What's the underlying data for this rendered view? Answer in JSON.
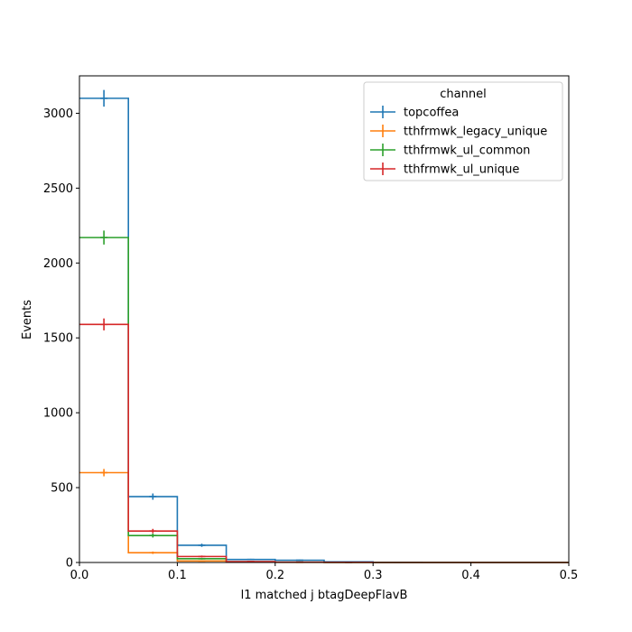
{
  "chart_data": {
    "type": "histogram",
    "xlabel": "l1 matched j btagDeepFlavB",
    "ylabel": "Events",
    "xlim": [
      0,
      0.5
    ],
    "ylim": [
      0,
      3250
    ],
    "x_ticks": [
      0,
      0.1,
      0.2,
      0.3,
      0.4,
      0.5
    ],
    "x_tick_labels": [
      "0.0",
      "0.1",
      "0.2",
      "0.3",
      "0.4",
      "0.5"
    ],
    "y_ticks": [
      0,
      500,
      1000,
      1500,
      2000,
      2500,
      3000
    ],
    "y_tick_labels": [
      "0",
      "500",
      "1000",
      "1500",
      "2000",
      "2500",
      "3000"
    ],
    "bin_edges": [
      0,
      0.05,
      0.1,
      0.15,
      0.2,
      0.25,
      0.3,
      0.35,
      0.4,
      0.45,
      0.5
    ],
    "legend": {
      "title": "channel",
      "location": "upper right"
    },
    "series": [
      {
        "name": "topcoffea",
        "color": "#1f77b4",
        "values": [
          3100,
          440,
          115,
          20,
          15,
          4,
          1,
          0,
          0,
          0
        ]
      },
      {
        "name": "tthfrmwk_legacy_unique",
        "color": "#ff7f0e",
        "values": [
          600,
          65,
          10,
          3,
          1,
          0,
          0,
          0,
          0,
          0
        ]
      },
      {
        "name": "tthfrmwk_ul_common",
        "color": "#2ca02c",
        "values": [
          2170,
          180,
          25,
          5,
          2,
          1,
          0,
          0,
          0,
          0
        ]
      },
      {
        "name": "tthfrmwk_ul_unique",
        "color": "#d62728",
        "values": [
          1590,
          210,
          40,
          6,
          2,
          1,
          0,
          0,
          0,
          0
        ]
      }
    ]
  }
}
